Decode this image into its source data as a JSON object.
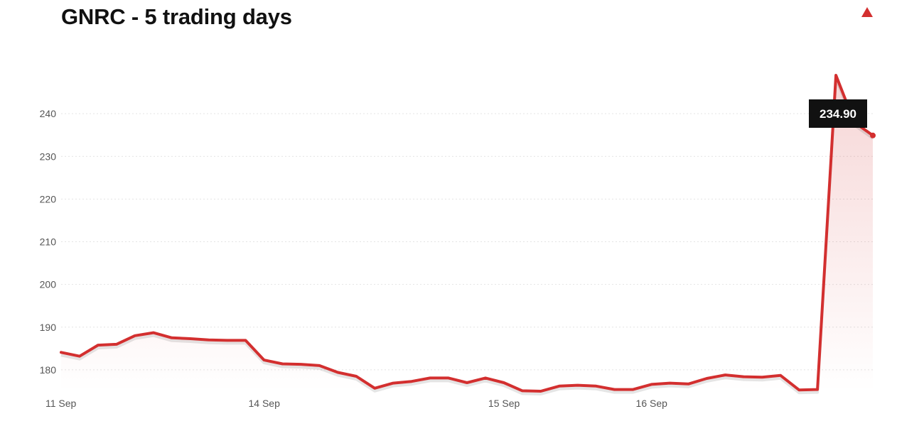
{
  "header": {
    "title": "GNRC - 5 trading days",
    "trend_icon": "triangle-up-icon",
    "trend_color": "#d32f2f"
  },
  "chart_data": {
    "type": "area",
    "title": "GNRC - 5 trading days",
    "xlabel": "",
    "ylabel": "",
    "ylim": [
      175,
      250
    ],
    "y_ticks": [
      180,
      190,
      200,
      210,
      220,
      230,
      240
    ],
    "x_ticks": [
      {
        "label": "11 Sep",
        "index": 0
      },
      {
        "label": "14 Sep",
        "index": 11
      },
      {
        "label": "15 Sep",
        "index": 24
      },
      {
        "label": "16 Sep",
        "index": 32
      }
    ],
    "grid": true,
    "line_color": "#d32f2f",
    "series": [
      {
        "values": [
          184.1,
          183.2,
          185.8,
          186.0,
          188.0,
          188.7,
          187.5,
          187.3,
          187.0,
          186.9,
          186.9,
          182.3,
          181.4,
          181.3,
          181.0,
          179.4,
          178.5,
          175.7,
          176.9,
          177.3,
          178.1,
          178.1,
          177.0,
          178.1,
          177.0,
          175.1,
          175.0,
          176.2,
          176.4,
          176.2,
          175.4,
          175.4,
          176.6,
          176.9,
          176.7,
          178.0,
          178.8,
          178.4,
          178.3,
          178.7,
          175.3,
          175.4,
          249.0,
          238.0,
          234.9
        ]
      }
    ],
    "tooltip": {
      "label": "234.90",
      "index": 44
    }
  }
}
